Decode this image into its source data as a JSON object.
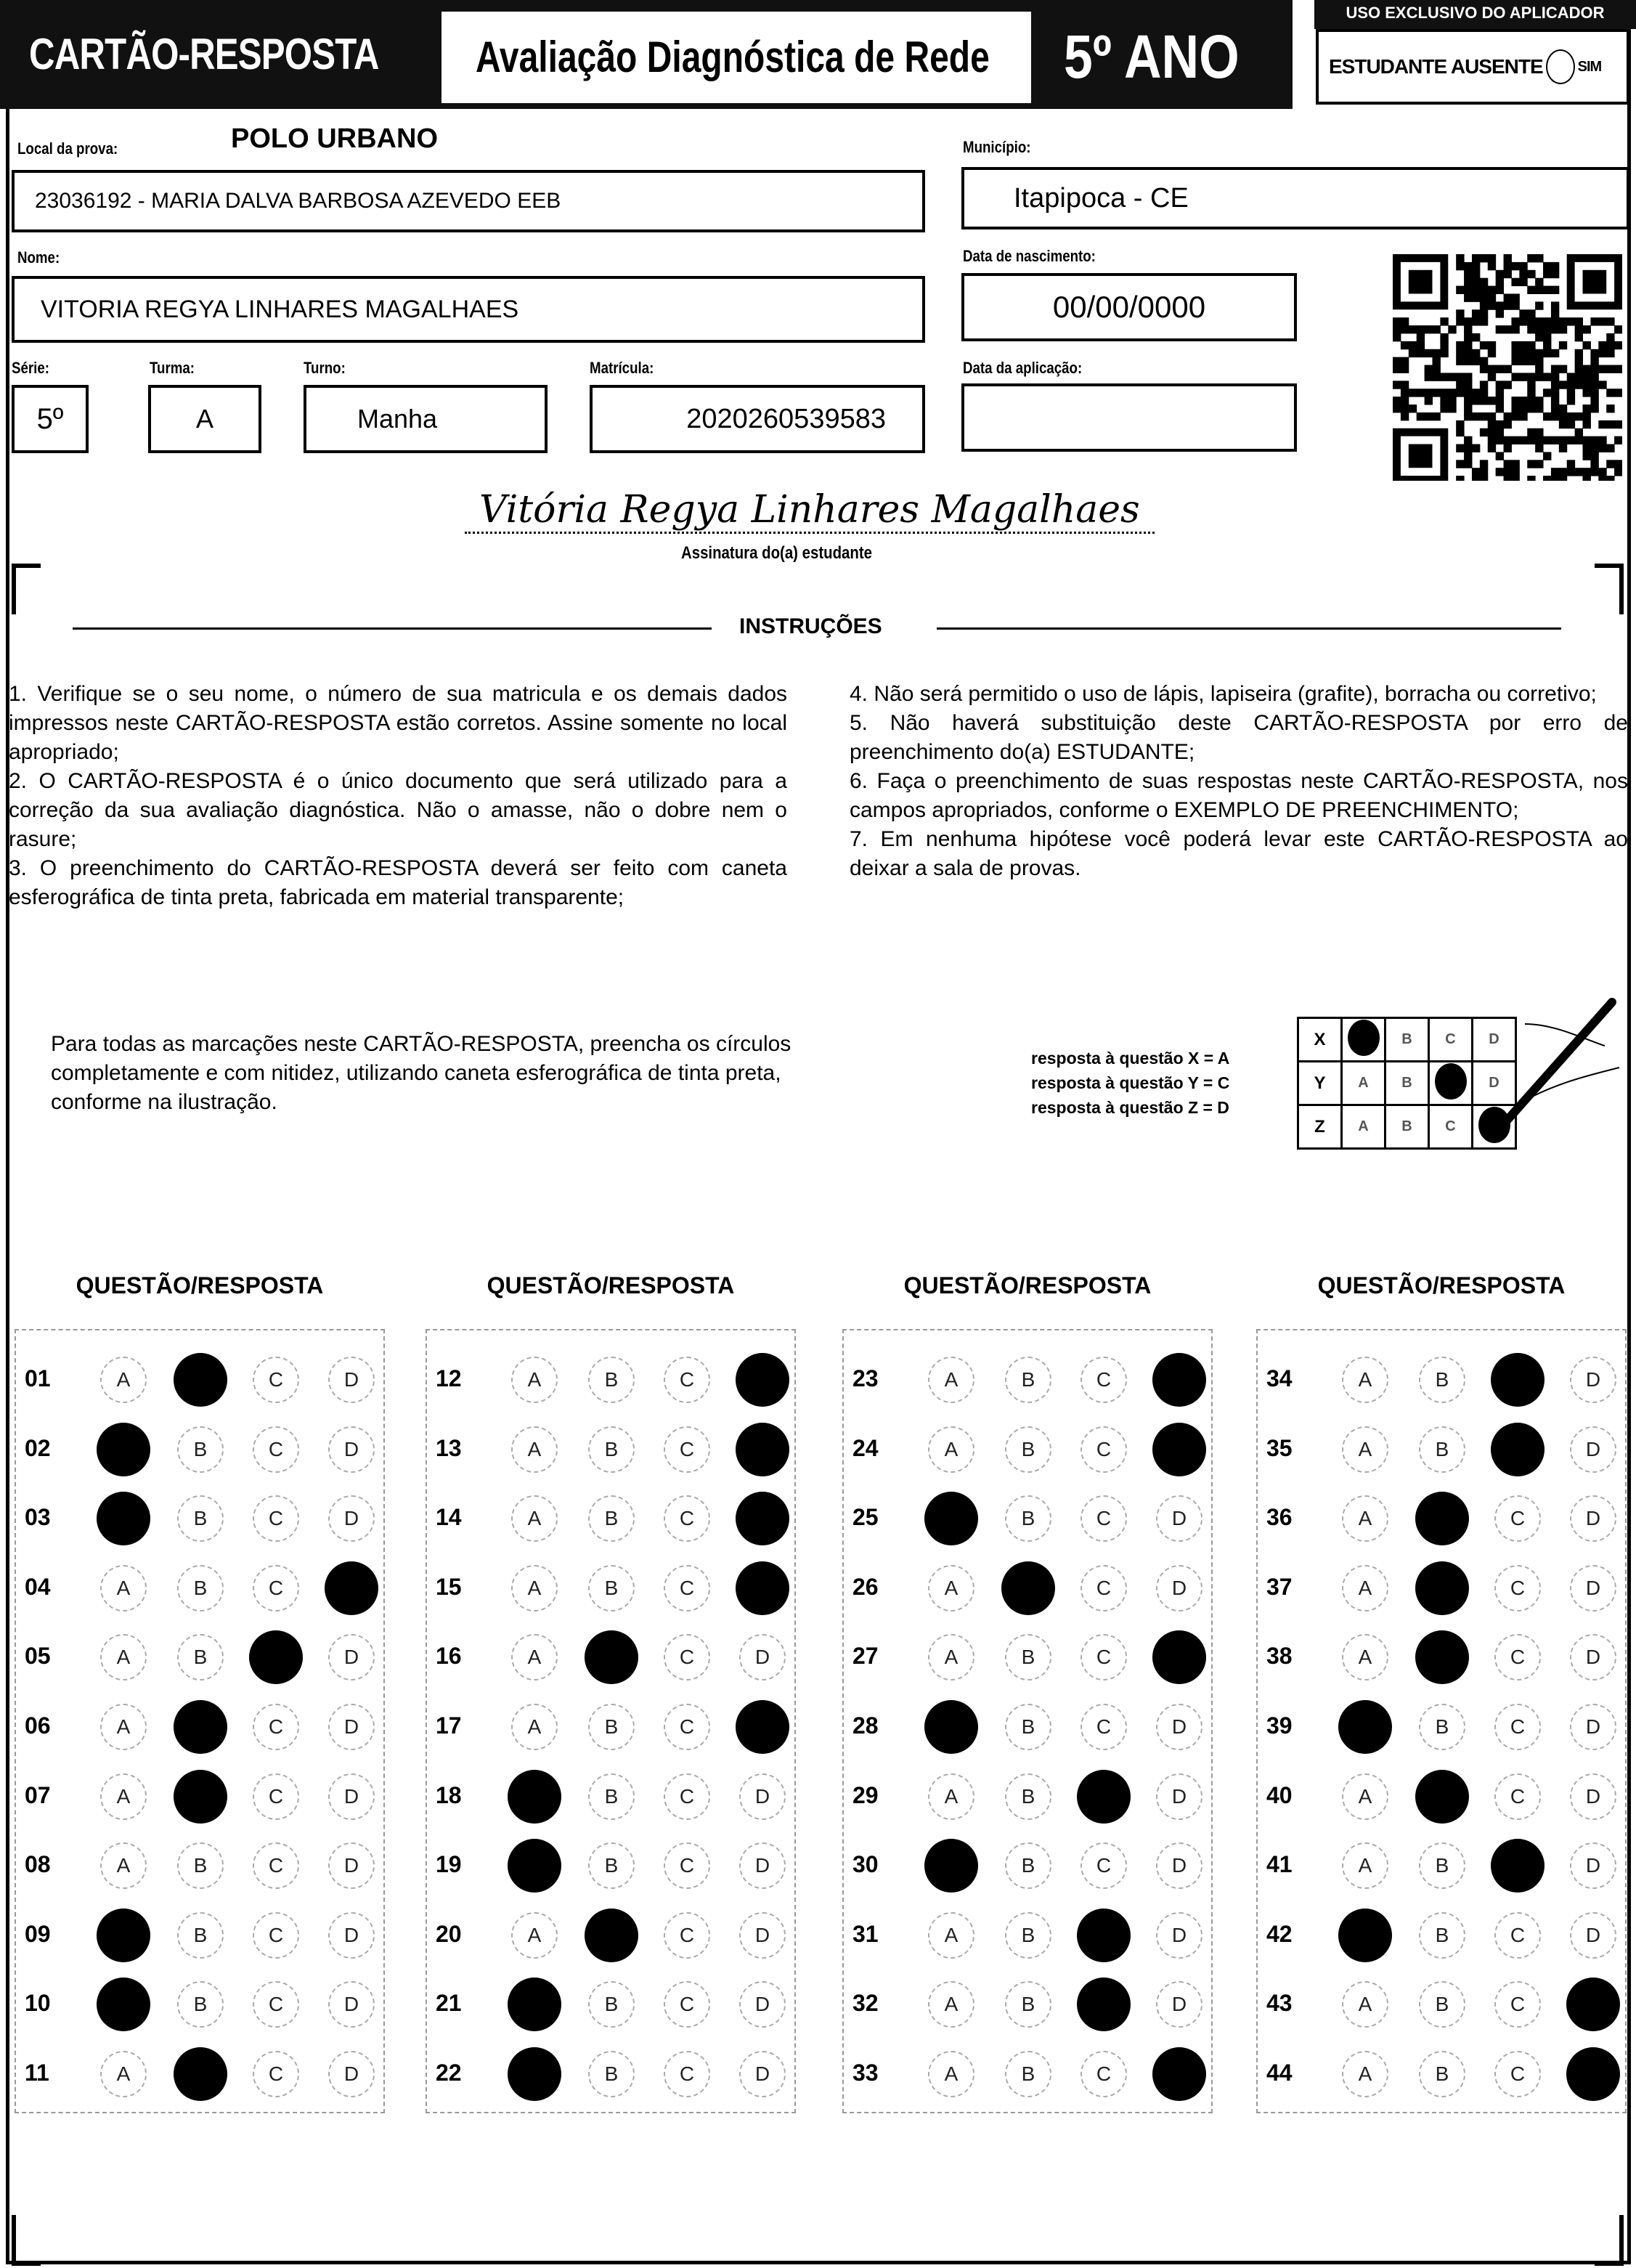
{
  "header": {
    "title": "CARTÃO-RESPOSTA",
    "subtitle": "Avaliação Diagnóstica de Rede",
    "grade": "5º ANO",
    "exclusive_label": "USO EXCLUSIVO DO APLICADOR",
    "absent_label": "ESTUDANTE AUSENTE",
    "absent_option": "SIM"
  },
  "fields": {
    "local_label": "Local da prova:",
    "local_polo": "POLO URBANO",
    "local_value": "23036192 - MARIA DALVA BARBOSA AZEVEDO EEB",
    "municipio_label": "Município:",
    "municipio_value": "Itapipoca - CE",
    "nome_label": "Nome:",
    "nome_value": "VITORIA REGYA LINHARES MAGALHAES",
    "nascimento_label": "Data de nascimento:",
    "nascimento_value": "00/00/0000",
    "serie_label": "Série:",
    "serie_value": "5º",
    "turma_label": "Turma:",
    "turma_value": "A",
    "turno_label": "Turno:",
    "turno_value": "Manha",
    "matricula_label": "Matrícula:",
    "matricula_value": "2020260539583",
    "aplicacao_label": "Data da aplicação:",
    "aplicacao_value": ""
  },
  "signature": {
    "handwritten": "Vitória Regya Linhares Magalhaes",
    "label": "Assinatura do(a) estudante"
  },
  "instructions": {
    "title": "INSTRUÇÕES",
    "left": [
      "1. Verifique se o seu nome, o número de sua matricula e os demais dados impressos neste CARTÃO-RESPOSTA estão corretos. Assine somente no local apropriado;",
      "2. O CARTÃO-RESPOSTA é o único documento que será utilizado para a correção da sua avaliação diagnóstica. Não o amasse, não o dobre nem o rasure;",
      "3. O preenchimento do CARTÃO-RESPOSTA deverá ser feito com caneta esferográfica de tinta preta, fabricada em material transparente;"
    ],
    "right": [
      "4. Não será permitido o uso de lápis, lapiseira (grafite), borracha ou corretivo;",
      "5. Não haverá substituição deste CARTÃO-RESPOSTA por erro de preenchimento do(a) ESTUDANTE;",
      "6. Faça o preenchimento de suas respostas neste CARTÃO-RESPOSTA, nos campos apropriados, conforme o EXEMPLO DE PREENCHIMENTO;",
      "7. Em nenhuma hipótese você poderá levar este CARTÃO-RESPOSTA ao deixar a sala de provas."
    ]
  },
  "fill_note": "Para todas as marcações neste CARTÃO-RESPOSTA, preencha os círculos completamente e com nitidez, utilizando caneta esferográfica de tinta preta, conforme na ilustração.",
  "example": {
    "captions": [
      "resposta à questão X = A",
      "resposta à questão Y = C",
      "resposta à questão Z = D"
    ],
    "rows": [
      {
        "q": "X",
        "marked": "A"
      },
      {
        "q": "Y",
        "marked": "C"
      },
      {
        "q": "Z",
        "marked": "D"
      }
    ]
  },
  "options": [
    "A",
    "B",
    "C",
    "D"
  ],
  "column_header": "QUESTÃO/RESPOSTA",
  "answers": [
    {
      "q": "01",
      "marked": "B"
    },
    {
      "q": "02",
      "marked": "A"
    },
    {
      "q": "03",
      "marked": "A"
    },
    {
      "q": "04",
      "marked": "D"
    },
    {
      "q": "05",
      "marked": "C"
    },
    {
      "q": "06",
      "marked": "B"
    },
    {
      "q": "07",
      "marked": "B"
    },
    {
      "q": "08",
      "marked": null
    },
    {
      "q": "09",
      "marked": "A"
    },
    {
      "q": "10",
      "marked": "A"
    },
    {
      "q": "11",
      "marked": "B"
    },
    {
      "q": "12",
      "marked": "D"
    },
    {
      "q": "13",
      "marked": "D"
    },
    {
      "q": "14",
      "marked": "D"
    },
    {
      "q": "15",
      "marked": "D"
    },
    {
      "q": "16",
      "marked": "B"
    },
    {
      "q": "17",
      "marked": "D"
    },
    {
      "q": "18",
      "marked": "A"
    },
    {
      "q": "19",
      "marked": "A"
    },
    {
      "q": "20",
      "marked": "B"
    },
    {
      "q": "21",
      "marked": "A"
    },
    {
      "q": "22",
      "marked": "A"
    },
    {
      "q": "23",
      "marked": "D"
    },
    {
      "q": "24",
      "marked": "D"
    },
    {
      "q": "25",
      "marked": "A"
    },
    {
      "q": "26",
      "marked": "B"
    },
    {
      "q": "27",
      "marked": "D"
    },
    {
      "q": "28",
      "marked": "A"
    },
    {
      "q": "29",
      "marked": "C"
    },
    {
      "q": "30",
      "marked": "A"
    },
    {
      "q": "31",
      "marked": "C"
    },
    {
      "q": "32",
      "marked": "C"
    },
    {
      "q": "33",
      "marked": "D"
    },
    {
      "q": "34",
      "marked": "C"
    },
    {
      "q": "35",
      "marked": "C"
    },
    {
      "q": "36",
      "marked": "B"
    },
    {
      "q": "37",
      "marked": "B"
    },
    {
      "q": "38",
      "marked": "B"
    },
    {
      "q": "39",
      "marked": "A"
    },
    {
      "q": "40",
      "marked": "B"
    },
    {
      "q": "41",
      "marked": "C"
    },
    {
      "q": "42",
      "marked": "A"
    },
    {
      "q": "43",
      "marked": "D"
    },
    {
      "q": "44",
      "marked": "D"
    }
  ]
}
